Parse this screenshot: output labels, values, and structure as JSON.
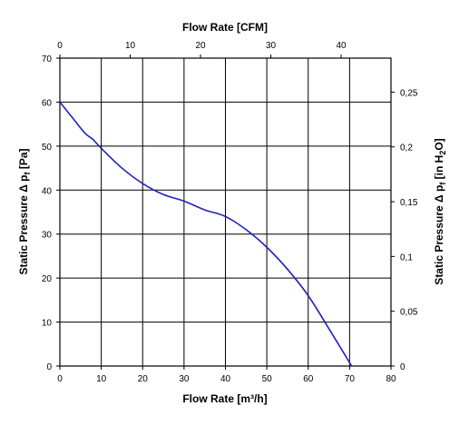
{
  "chart_data": {
    "type": "line",
    "title": "",
    "xlabel": "Flow Rate [m³/h]",
    "x2label": "Flow Rate [CFM]",
    "ylabel": "Static Pressure Δ p",
    "ylabel_sub": "f",
    "ylabel_unit": " [Pa]",
    "y2label": "Static Pressure Δ p",
    "y2label_sub": "f",
    "y2label_unit_pre": " [in H",
    "y2label_unit_sub": "2",
    "y2label_unit_post": "O]",
    "xlim": [
      0,
      80
    ],
    "ylim": [
      0,
      70
    ],
    "x2lim": [
      0,
      47.09
    ],
    "y2lim": [
      0,
      0.281
    ],
    "grid": true,
    "xticks": [
      0,
      10,
      20,
      30,
      40,
      50,
      60,
      70,
      80
    ],
    "yticks": [
      0,
      10,
      20,
      30,
      40,
      50,
      60,
      70
    ],
    "x2ticks": [
      0,
      10,
      20,
      30,
      40
    ],
    "y2ticks": [
      0,
      0.05,
      0.1,
      0.15,
      0.2,
      0.25
    ],
    "y2tick_labels": [
      "0",
      "0,05",
      "0,1",
      "0,15",
      "0,2",
      "0,25"
    ],
    "series": [
      {
        "color": "#2222bb",
        "x": [
          0,
          3,
          6,
          8,
          10,
          15,
          20,
          25,
          30,
          35,
          40,
          45,
          50,
          55,
          60,
          65,
          70.5
        ],
        "y": [
          60,
          56.5,
          53,
          51.5,
          49.5,
          45,
          41.5,
          39,
          37.5,
          35.5,
          34,
          31,
          27,
          22,
          16,
          8.5,
          0
        ]
      }
    ]
  }
}
